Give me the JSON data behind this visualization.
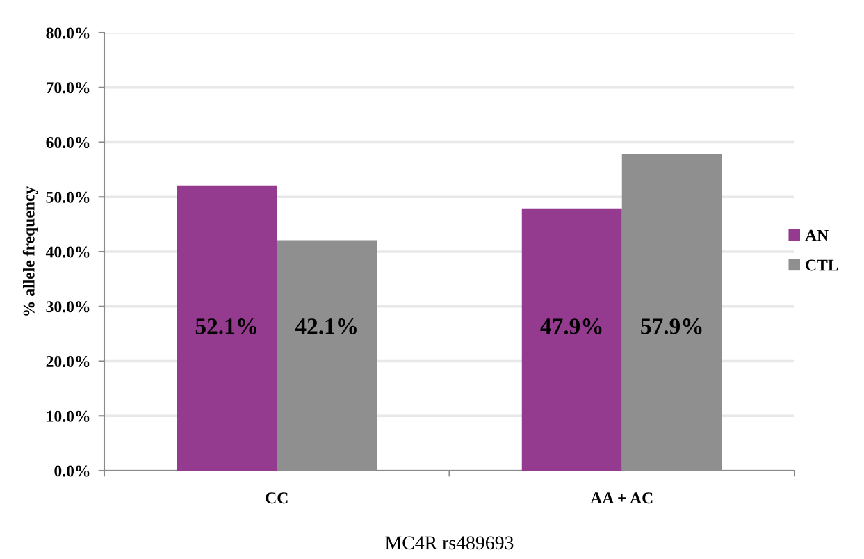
{
  "chart_data": {
    "type": "bar",
    "categories": [
      "CC",
      "AA + AC"
    ],
    "series": [
      {
        "name": "AN",
        "color": "#943a8f",
        "values": [
          52.1,
          47.9
        ],
        "value_labels": [
          "52.1%",
          "47.9%"
        ]
      },
      {
        "name": "CTL",
        "color": "#8f8f8f",
        "values": [
          42.1,
          57.9
        ],
        "value_labels": [
          "42.1%",
          "57.9%"
        ]
      }
    ],
    "xlabel": "MC4R rs489693",
    "ylabel": "% allele frequency",
    "ylim": [
      0,
      80
    ],
    "yticks": [
      {
        "value": 0,
        "label": "0.0%"
      },
      {
        "value": 10,
        "label": "10.0%"
      },
      {
        "value": 20,
        "label": "20.0%"
      },
      {
        "value": 30,
        "label": "30.0%"
      },
      {
        "value": 40,
        "label": "40.0%"
      },
      {
        "value": 50,
        "label": "50.0%"
      },
      {
        "value": 60,
        "label": "60.0%"
      },
      {
        "value": 70,
        "label": "70.0%"
      },
      {
        "value": 80,
        "label": "80.0%"
      }
    ],
    "grid": "y",
    "legend": "right"
  }
}
